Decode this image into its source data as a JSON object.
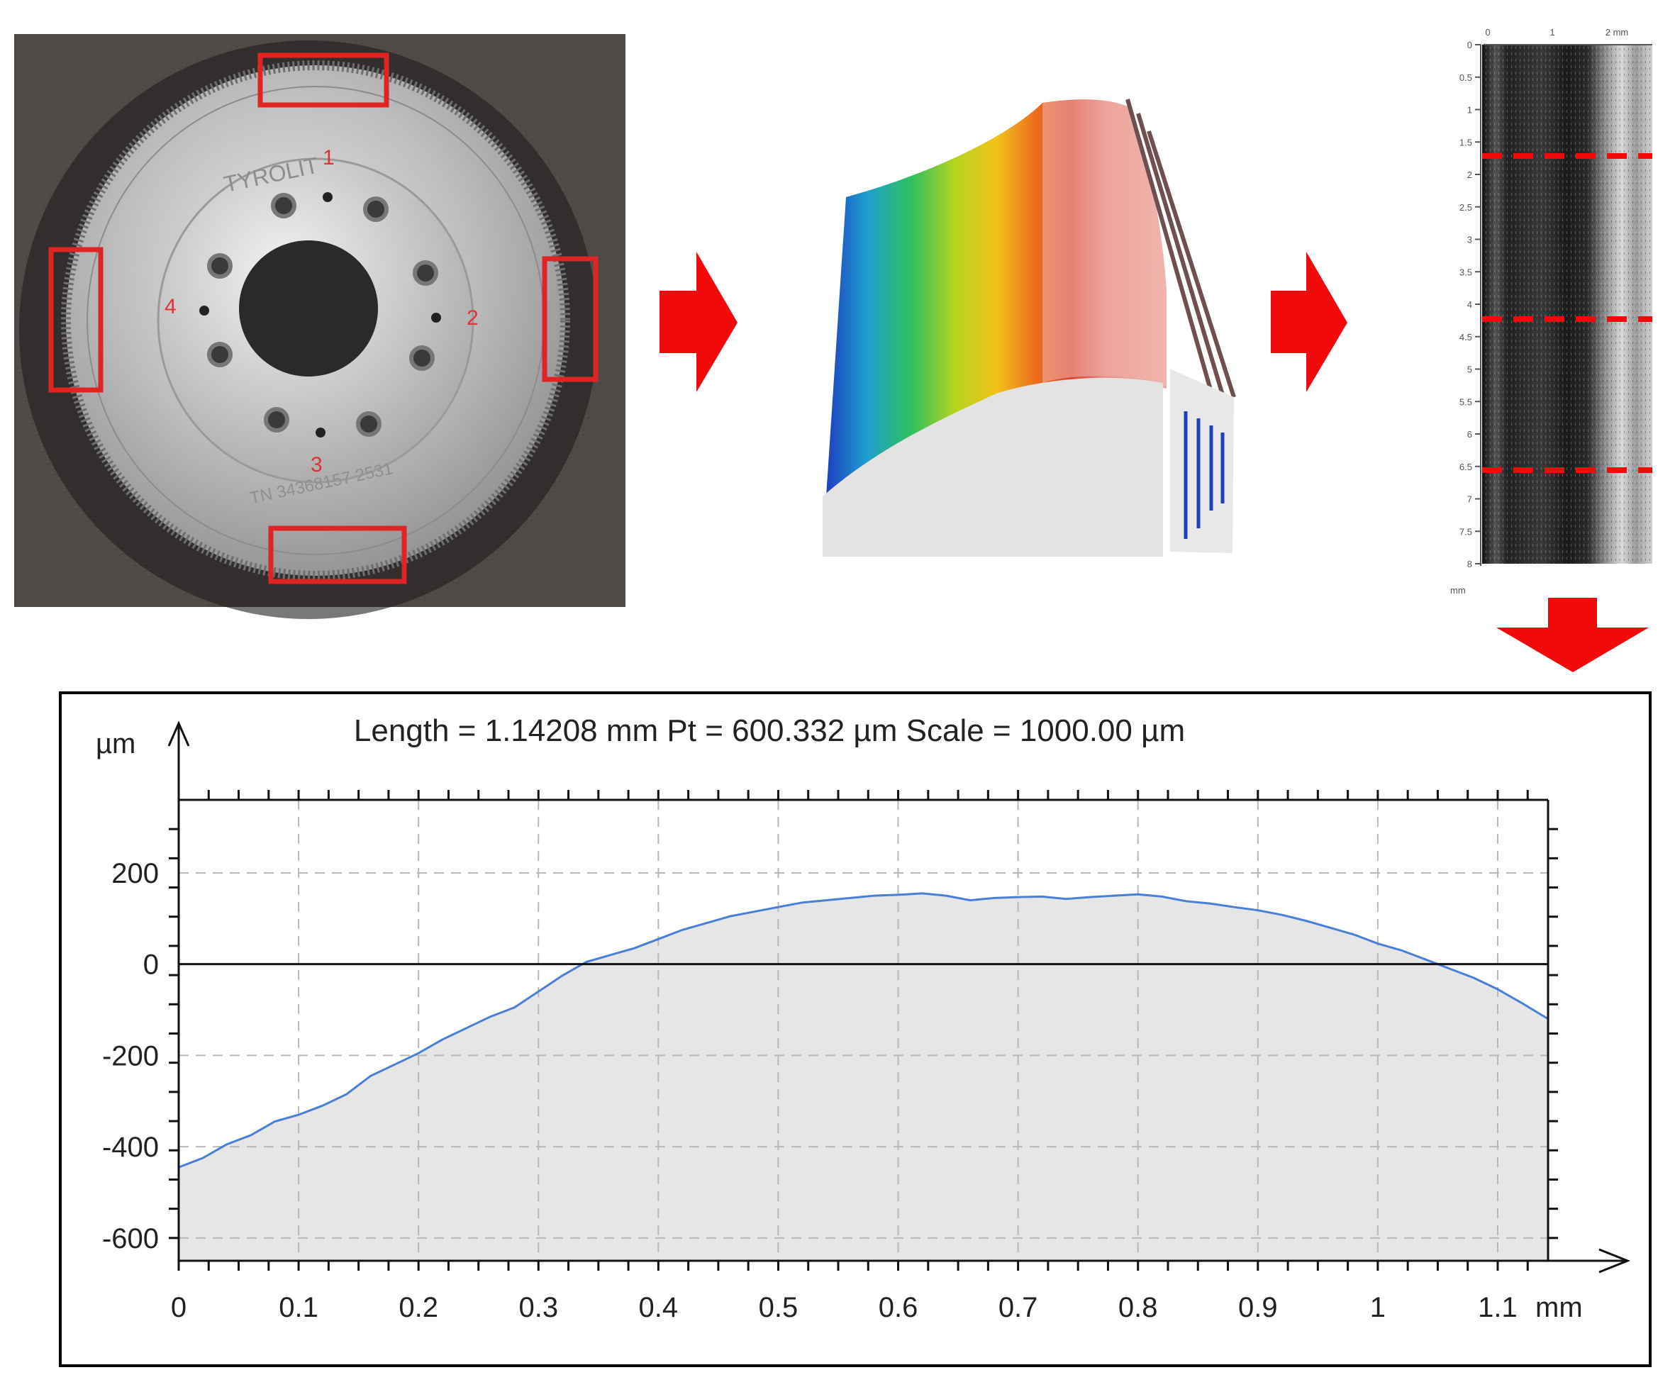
{
  "photo": {
    "brand": "TYROLIT",
    "markers": [
      "1",
      "2",
      "3",
      "4"
    ],
    "engraving": "TN 34368157  2531"
  },
  "scan_strip": {
    "x_ticks": [
      "0",
      "1",
      "2 mm"
    ],
    "y_ticks": [
      "0",
      "0.5",
      "1",
      "1.5",
      "2",
      "2.5",
      "3",
      "3.5",
      "4",
      "4.5",
      "5",
      "5.5",
      "6",
      "6.5",
      "7",
      "7.5",
      "8"
    ],
    "unit": "mm"
  },
  "chart_data": {
    "type": "area",
    "title": "Length = 1.14208 mm  Pt = 600.332 µm  Scale = 1000.00 µm",
    "xlabel": "mm",
    "ylabel": "µm",
    "xlim": [
      0,
      1.142
    ],
    "ylim": [
      -650,
      360
    ],
    "x_ticks": [
      "0",
      "0.1",
      "0.2",
      "0.3",
      "0.4",
      "0.5",
      "0.6",
      "0.7",
      "0.8",
      "0.9",
      "1",
      "1.1"
    ],
    "y_ticks": [
      "200",
      "0",
      "-200",
      "-400",
      "-600"
    ],
    "grid": true,
    "series": [
      {
        "x": [
          0,
          0.02,
          0.04,
          0.06,
          0.08,
          0.1,
          0.12,
          0.14,
          0.16,
          0.18,
          0.2,
          0.22,
          0.24,
          0.26,
          0.28,
          0.3,
          0.32,
          0.34,
          0.36,
          0.38,
          0.4,
          0.42,
          0.44,
          0.46,
          0.48,
          0.5,
          0.52,
          0.54,
          0.56,
          0.58,
          0.6,
          0.62,
          0.64,
          0.66,
          0.68,
          0.7,
          0.72,
          0.74,
          0.76,
          0.78,
          0.8,
          0.82,
          0.84,
          0.86,
          0.88,
          0.9,
          0.92,
          0.94,
          0.96,
          0.98,
          1.0,
          1.02,
          1.04,
          1.06,
          1.08,
          1.1,
          1.12,
          1.142
        ],
        "y": [
          -445,
          -425,
          -395,
          -375,
          -345,
          -330,
          -310,
          -285,
          -245,
          -220,
          -195,
          -165,
          -140,
          -115,
          -95,
          -60,
          -25,
          5,
          20,
          35,
          55,
          75,
          90,
          105,
          115,
          125,
          135,
          140,
          145,
          150,
          152,
          155,
          150,
          140,
          145,
          147,
          148,
          143,
          147,
          150,
          153,
          148,
          138,
          133,
          125,
          118,
          108,
          95,
          80,
          65,
          45,
          30,
          10,
          -10,
          -30,
          -55,
          -85,
          -120
        ]
      }
    ]
  }
}
